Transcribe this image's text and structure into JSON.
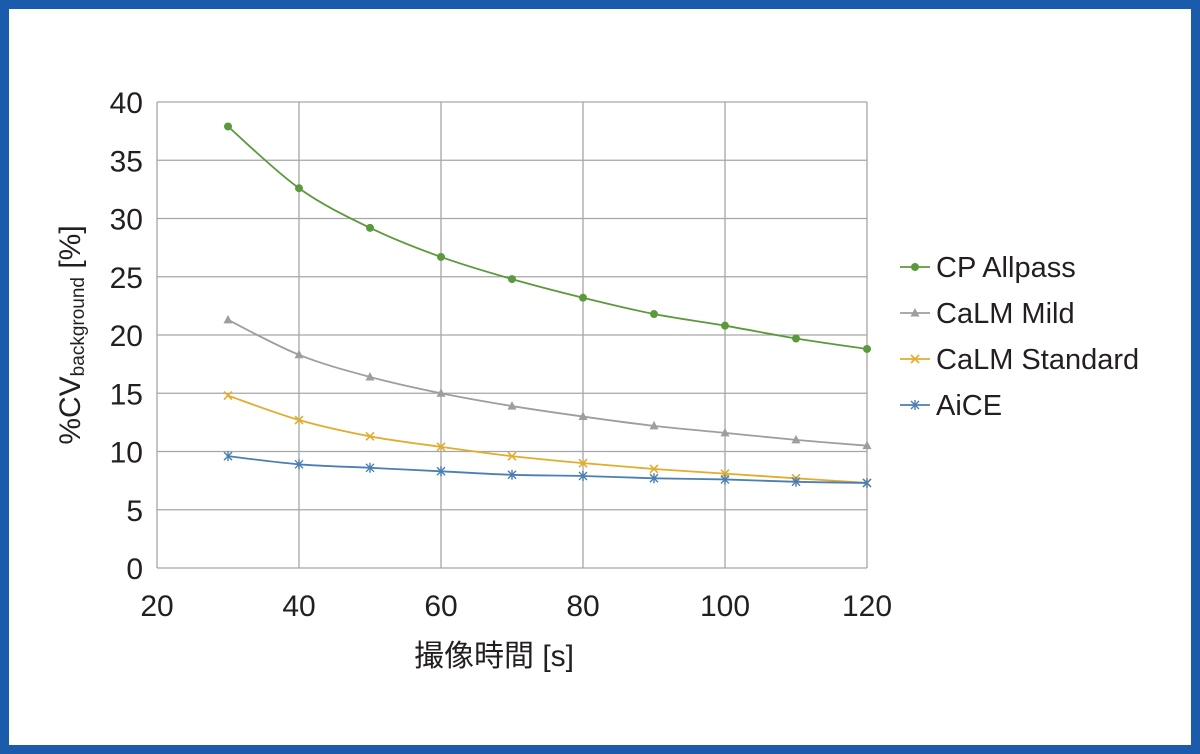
{
  "chart_data": {
    "type": "line",
    "title": "",
    "xlabel": "撮像時間 [s]",
    "ylabel_main": "%CV",
    "ylabel_sub": "background",
    "ylabel_unit": " [%]",
    "xlim": [
      20,
      120
    ],
    "ylim": [
      0,
      40
    ],
    "xticks": [
      20,
      40,
      60,
      80,
      100,
      120
    ],
    "yticks": [
      0,
      5,
      10,
      15,
      20,
      25,
      30,
      35,
      40
    ],
    "grid": true,
    "legend_position": "right",
    "x": [
      30,
      40,
      50,
      60,
      70,
      80,
      90,
      100,
      110,
      120
    ],
    "series": [
      {
        "name": "CP Allpass",
        "color": "#5b9a3c",
        "marker": "circle",
        "values": [
          37.9,
          32.6,
          29.2,
          26.7,
          24.8,
          23.2,
          21.8,
          20.8,
          19.7,
          18.8
        ]
      },
      {
        "name": "CaLM Mild",
        "color": "#9e9e9e",
        "marker": "triangle",
        "values": [
          21.3,
          18.3,
          16.4,
          15.0,
          13.9,
          13.0,
          12.2,
          11.6,
          11.0,
          10.5
        ]
      },
      {
        "name": "CaLM Standard",
        "color": "#e3ac2c",
        "marker": "x",
        "values": [
          14.8,
          12.7,
          11.3,
          10.4,
          9.6,
          9.0,
          8.5,
          8.1,
          7.7,
          7.3
        ]
      },
      {
        "name": "AiCE",
        "color": "#4a7fb5",
        "marker": "star",
        "values": [
          9.6,
          8.9,
          8.6,
          8.3,
          8.0,
          7.9,
          7.7,
          7.6,
          7.4,
          7.3
        ]
      }
    ]
  }
}
